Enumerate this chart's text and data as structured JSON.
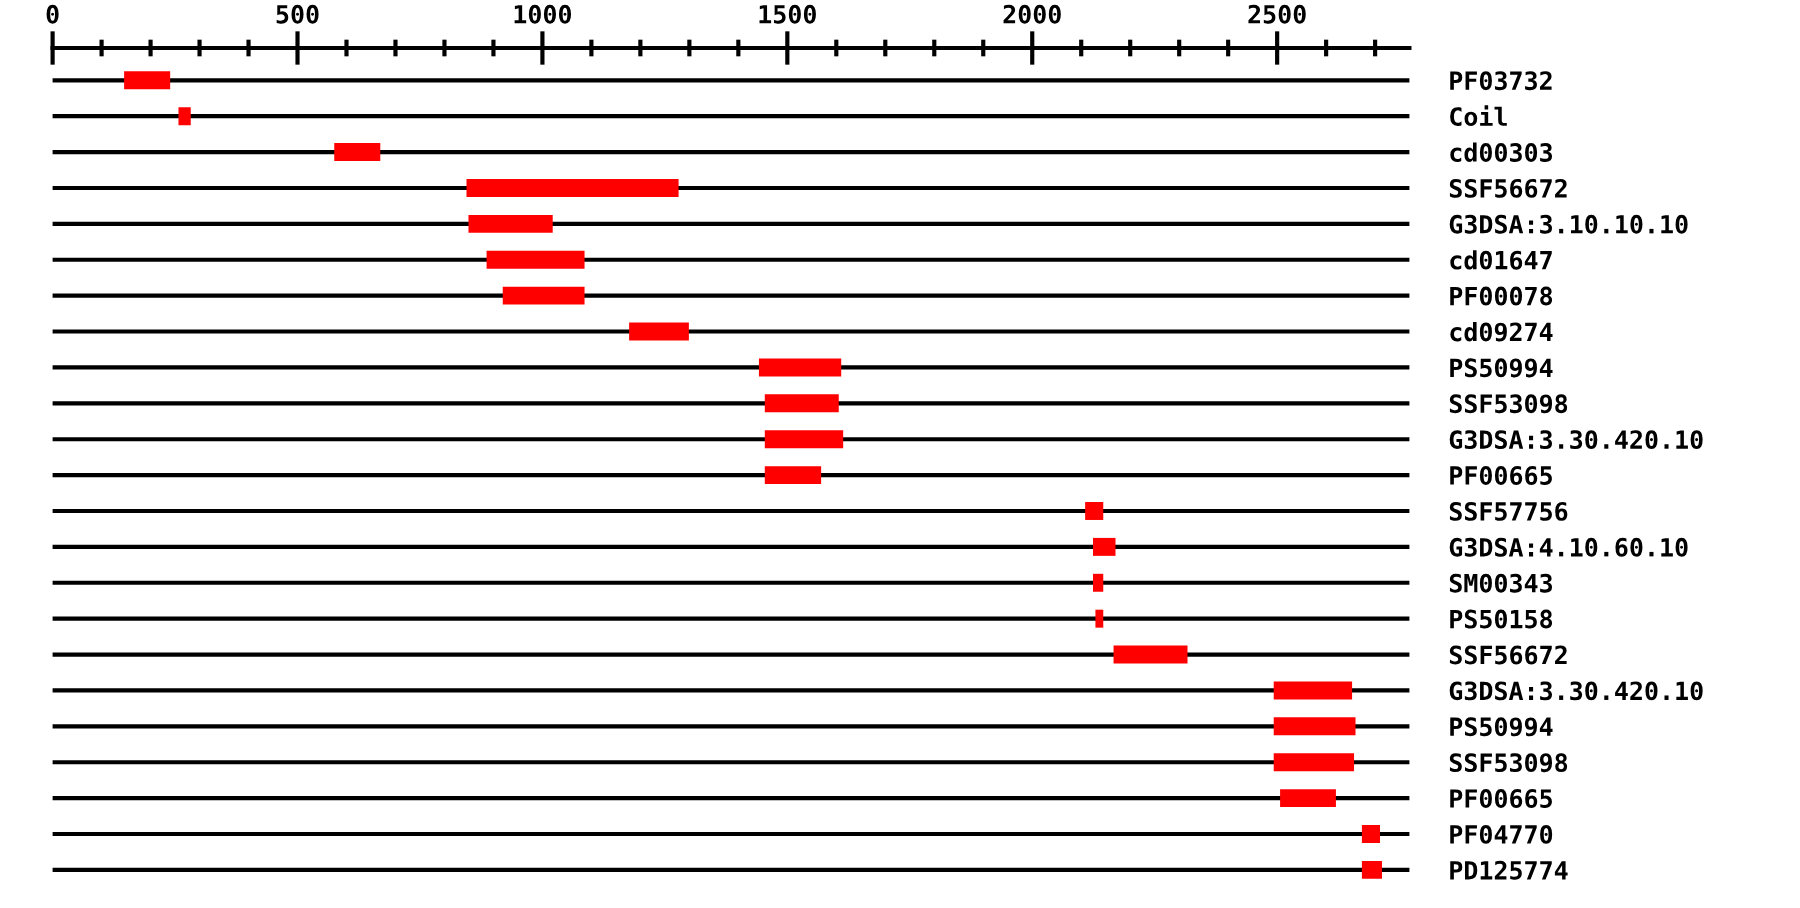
{
  "chart_data": {
    "type": "bar",
    "orientation": "horizontal",
    "grid": "y",
    "color": "#ff0000",
    "categories": [
      "PF03732",
      "Coil",
      "cd00303",
      "SSF56672",
      "G3DSA:3.10.10.10",
      "cd01647",
      "PF00078",
      "cd09274",
      "PS50994",
      "SSF53098",
      "G3DSA:3.30.420.10",
      "PF00665",
      "SSF57756",
      "G3DSA:4.10.60.10",
      "SM00343",
      "PS50158",
      "SSF56672",
      "G3DSA:3.30.420.10",
      "PS50994",
      "SSF53098",
      "PF00665",
      "PF04770",
      "PD125774"
    ],
    "base": [
      146,
      257,
      575,
      845,
      849,
      886,
      919,
      1177,
      1442,
      1454,
      1454,
      1454,
      2108,
      2124,
      2124,
      2129,
      2166,
      2493,
      2493,
      2493,
      2506,
      2673,
      2673
    ],
    "values": [
      94,
      25,
      94,
      433,
      172,
      200,
      167,
      122,
      168,
      151,
      160,
      115,
      37,
      46,
      21,
      16,
      151,
      160,
      167,
      164,
      114,
      37,
      41
    ],
    "xlim": [
      0,
      2770
    ],
    "xticks": [
      0,
      {
        "value": 100,
        "label": null
      },
      {
        "value": 200,
        "label": null
      },
      {
        "value": 300,
        "label": null
      },
      {
        "value": 400,
        "label": null
      },
      500,
      {
        "value": 600,
        "label": null
      },
      {
        "value": 700,
        "label": null
      },
      {
        "value": 800,
        "label": null
      },
      {
        "value": 900,
        "label": null
      },
      1000,
      {
        "value": 1100,
        "label": null
      },
      {
        "value": 1200,
        "label": null
      },
      {
        "value": 1300,
        "label": null
      },
      {
        "value": 1400,
        "label": null
      },
      1500,
      {
        "value": 1600,
        "label": null
      },
      {
        "value": 1700,
        "label": null
      },
      {
        "value": 1800,
        "label": null
      },
      {
        "value": 1900,
        "label": null
      },
      2000,
      {
        "value": 2100,
        "label": null
      },
      {
        "value": 2200,
        "label": null
      },
      {
        "value": 2300,
        "label": null
      },
      {
        "value": 2400,
        "label": null
      },
      2500,
      {
        "value": 2600,
        "label": null
      },
      {
        "value": 2700,
        "label": null
      }
    ]
  }
}
